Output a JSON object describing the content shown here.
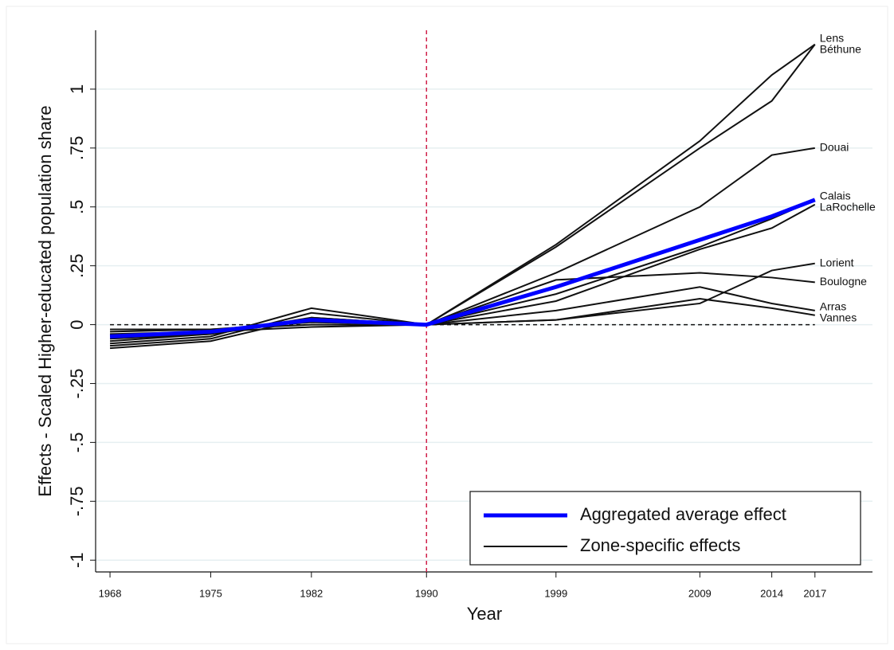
{
  "chart_data": {
    "type": "line",
    "y_label": "Effects - Scaled Higher-educated population share",
    "x_label": "Year",
    "x": [
      1968,
      1975,
      1982,
      1990,
      1999,
      2009,
      2014,
      2017
    ],
    "xlim": [
      1967,
      2021
    ],
    "xticks": [
      1968,
      1975,
      1982,
      1990,
      1999,
      2009,
      2014,
      2017
    ],
    "ylim": [
      -1.05,
      1.25
    ],
    "yticks": [
      {
        "value": -1,
        "label": "-1"
      },
      {
        "value": -0.75,
        "label": "-.75"
      },
      {
        "value": -0.5,
        "label": "-.5"
      },
      {
        "value": -0.25,
        "label": "-.25"
      },
      0,
      {
        "value": 0.25,
        "label": ".25"
      },
      {
        "value": 0.5,
        "label": ".5"
      },
      {
        "value": 0.75,
        "label": ".75"
      },
      1
    ],
    "grid": true,
    "vline": 1990,
    "hline": 0,
    "zone_legend": "Zone-specific effects",
    "zone_color": "#111111",
    "average": {
      "name": "Aggregated average effect",
      "color": "#0000ff",
      "values": [
        -0.05,
        -0.03,
        0.02,
        0,
        0.16,
        0.36,
        0.46,
        0.53
      ]
    },
    "series": [
      {
        "name": "Lens",
        "values": [
          -0.08,
          -0.05,
          0.07,
          0,
          0.34,
          0.78,
          1.06,
          1.19
        ]
      },
      {
        "name": "Béthune",
        "values": [
          -0.09,
          -0.06,
          0.05,
          0,
          0.33,
          0.75,
          0.95,
          1.19
        ]
      },
      {
        "name": "Douai",
        "values": [
          -0.07,
          -0.04,
          0.03,
          0,
          0.22,
          0.5,
          0.72,
          0.75
        ]
      },
      {
        "name": "Calais",
        "values": [
          -0.04,
          -0.03,
          0.02,
          0,
          0.13,
          0.33,
          0.45,
          0.53
        ]
      },
      {
        "name": "LaRochelle",
        "values": [
          -0.03,
          -0.02,
          0.01,
          0,
          0.1,
          0.32,
          0.41,
          0.51
        ]
      },
      {
        "name": "Lorient",
        "values": [
          -0.02,
          -0.02,
          0.0,
          0,
          0.02,
          0.09,
          0.23,
          0.26
        ]
      },
      {
        "name": "Boulogne",
        "values": [
          -0.06,
          -0.04,
          0.02,
          0,
          0.19,
          0.22,
          0.2,
          0.18
        ]
      },
      {
        "name": "Arras",
        "values": [
          -0.1,
          -0.07,
          0.03,
          0,
          0.06,
          0.16,
          0.09,
          0.06
        ]
      },
      {
        "name": "Vannes",
        "values": [
          -0.05,
          -0.03,
          -0.01,
          0,
          0.02,
          0.11,
          0.07,
          0.04
        ]
      }
    ]
  }
}
